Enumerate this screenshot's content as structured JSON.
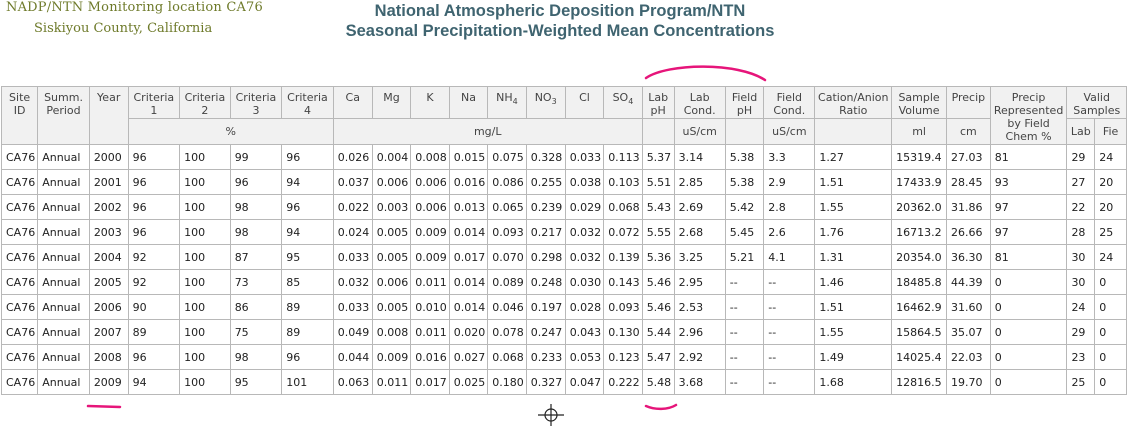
{
  "header": {
    "site_title": "NADP/NTN Monitoring location CA76",
    "site_subtitle": "Siskiyou County, California",
    "title": "National Atmospheric Deposition Program/NTN",
    "subtitle": "Seasonal Precipitation-Weighted Mean Concentrations"
  },
  "table": {
    "headers": {
      "site_id": "Site ID",
      "summ_period": "Summ. Period",
      "year": "Year",
      "criteria1": "Criteria 1",
      "criteria2": "Criteria 2",
      "criteria3": "Criteria 3",
      "criteria4": "Criteria 4",
      "ca": "Ca",
      "mg": "Mg",
      "k": "K",
      "na": "Na",
      "nh4_base": "NH",
      "nh4_sub": "4",
      "no3_base": "NO",
      "no3_sub": "3",
      "cl": "Cl",
      "so4_base": "SO",
      "so4_sub": "4",
      "lab_ph": "Lab pH",
      "lab_cond": "Lab Cond.",
      "field_ph": "Field pH",
      "field_cond": "Field Cond.",
      "cation_anion": "Cation/Anion Ratio",
      "sample_volume": "Sample Volume",
      "precip": "Precip",
      "precip_rep": "Precip Represented by Field Chem %",
      "valid_samples": "Valid Samples"
    },
    "units": {
      "criteria": "%",
      "conc": "mg/L",
      "lab_cond": "uS/cm",
      "field_cond": "uS/cm",
      "volume": "ml",
      "precip": "cm",
      "valid_lab": "Lab",
      "valid_field": "Fie"
    },
    "rows": [
      [
        "CA76",
        "Annual",
        "2000",
        "96",
        "100",
        "99",
        "96",
        "0.026",
        "0.004",
        "0.008",
        "0.015",
        "0.075",
        "0.328",
        "0.033",
        "0.113",
        "5.37",
        "3.14",
        "5.38",
        "3.3",
        "1.27",
        "15319.4",
        "27.03",
        "81",
        "29",
        "24"
      ],
      [
        "CA76",
        "Annual",
        "2001",
        "96",
        "100",
        "96",
        "94",
        "0.037",
        "0.006",
        "0.006",
        "0.016",
        "0.086",
        "0.255",
        "0.038",
        "0.103",
        "5.51",
        "2.85",
        "5.38",
        "2.9",
        "1.51",
        "17433.9",
        "28.45",
        "93",
        "27",
        "20"
      ],
      [
        "CA76",
        "Annual",
        "2002",
        "96",
        "100",
        "98",
        "96",
        "0.022",
        "0.003",
        "0.006",
        "0.013",
        "0.065",
        "0.239",
        "0.029",
        "0.068",
        "5.43",
        "2.69",
        "5.42",
        "2.8",
        "1.55",
        "20362.0",
        "31.86",
        "97",
        "22",
        "20"
      ],
      [
        "CA76",
        "Annual",
        "2003",
        "96",
        "100",
        "98",
        "94",
        "0.024",
        "0.005",
        "0.009",
        "0.014",
        "0.093",
        "0.217",
        "0.032",
        "0.072",
        "5.55",
        "2.68",
        "5.45",
        "2.6",
        "1.76",
        "16713.2",
        "26.66",
        "97",
        "28",
        "25"
      ],
      [
        "CA76",
        "Annual",
        "2004",
        "92",
        "100",
        "87",
        "95",
        "0.033",
        "0.005",
        "0.009",
        "0.017",
        "0.070",
        "0.298",
        "0.032",
        "0.139",
        "5.36",
        "3.25",
        "5.21",
        "4.1",
        "1.31",
        "20354.0",
        "36.30",
        "81",
        "30",
        "24"
      ],
      [
        "CA76",
        "Annual",
        "2005",
        "92",
        "100",
        "73",
        "85",
        "0.032",
        "0.006",
        "0.011",
        "0.014",
        "0.089",
        "0.248",
        "0.030",
        "0.143",
        "5.46",
        "2.95",
        "--",
        "--",
        "1.46",
        "18485.8",
        "44.39",
        "0",
        "30",
        "0"
      ],
      [
        "CA76",
        "Annual",
        "2006",
        "90",
        "100",
        "86",
        "89",
        "0.033",
        "0.005",
        "0.010",
        "0.014",
        "0.046",
        "0.197",
        "0.028",
        "0.093",
        "5.46",
        "2.53",
        "--",
        "--",
        "1.51",
        "16462.9",
        "31.60",
        "0",
        "24",
        "0"
      ],
      [
        "CA76",
        "Annual",
        "2007",
        "89",
        "100",
        "75",
        "89",
        "0.049",
        "0.008",
        "0.011",
        "0.020",
        "0.078",
        "0.247",
        "0.043",
        "0.130",
        "5.44",
        "2.96",
        "--",
        "--",
        "1.55",
        "15864.5",
        "35.07",
        "0",
        "29",
        "0"
      ],
      [
        "CA76",
        "Annual",
        "2008",
        "96",
        "100",
        "98",
        "96",
        "0.044",
        "0.009",
        "0.016",
        "0.027",
        "0.068",
        "0.233",
        "0.053",
        "0.123",
        "5.47",
        "2.92",
        "--",
        "--",
        "1.49",
        "14025.4",
        "22.03",
        "0",
        "23",
        "0"
      ],
      [
        "CA76",
        "Annual",
        "2009",
        "94",
        "100",
        "95",
        "101",
        "0.063",
        "0.011",
        "0.017",
        "0.025",
        "0.180",
        "0.327",
        "0.047",
        "0.222",
        "5.48",
        "3.68",
        "--",
        "--",
        "1.68",
        "12816.5",
        "19.70",
        "0",
        "25",
        "0"
      ]
    ]
  },
  "annotations": {
    "color": "#e6157a",
    "crosshair_icon": "crosshair-icon"
  }
}
